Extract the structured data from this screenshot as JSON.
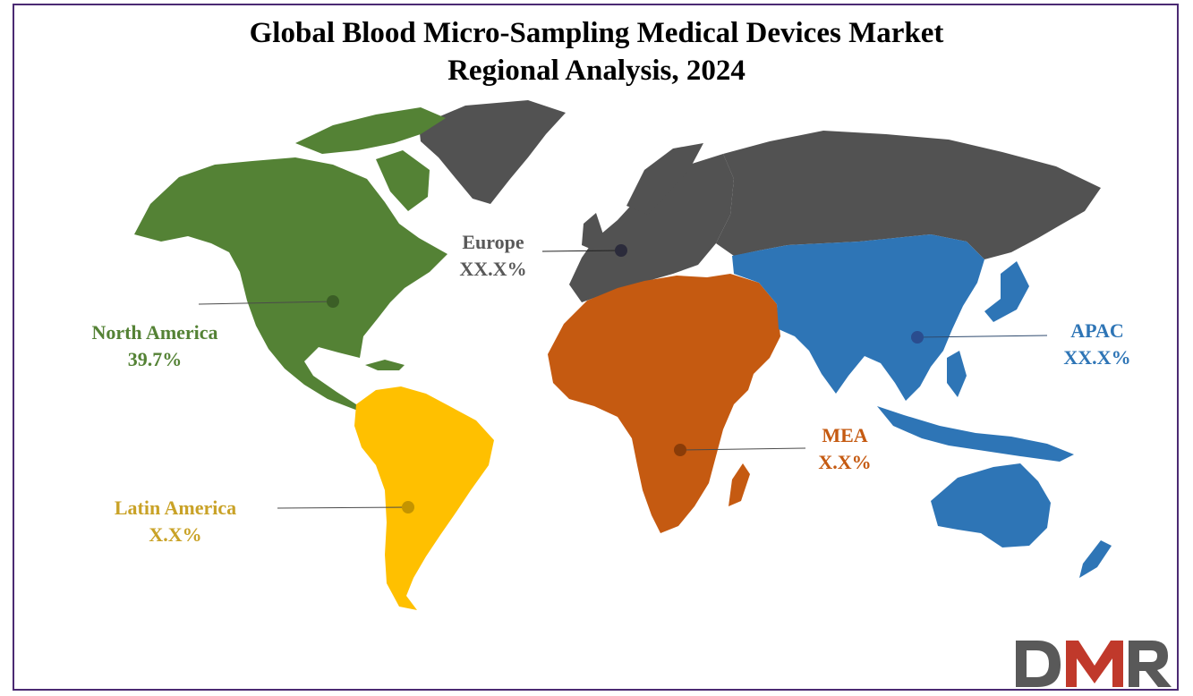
{
  "title": {
    "line1": "Global Blood Micro-Sampling Medical Devices Market",
    "line2": "Regional Analysis, 2024"
  },
  "colors": {
    "north_america": "#548235",
    "latin_america": "#ffc000",
    "europe": "#525252",
    "mea": "#c55a11",
    "apac": "#2e75b6",
    "border": "#4b2a73"
  },
  "regions": [
    {
      "id": "north-america",
      "name": "North America",
      "value": "39.7%"
    },
    {
      "id": "latin-america",
      "name": "Latin America",
      "value": "X.X%"
    },
    {
      "id": "europe",
      "name": "Europe",
      "value": "XX.X%"
    },
    {
      "id": "mea",
      "name": "MEA",
      "value": "X.X%"
    },
    {
      "id": "apac",
      "name": "APAC",
      "value": "XX.X%"
    }
  ],
  "logo": {
    "text": "DMR",
    "brand_color": "#c0392b",
    "text_color": "#595959"
  }
}
